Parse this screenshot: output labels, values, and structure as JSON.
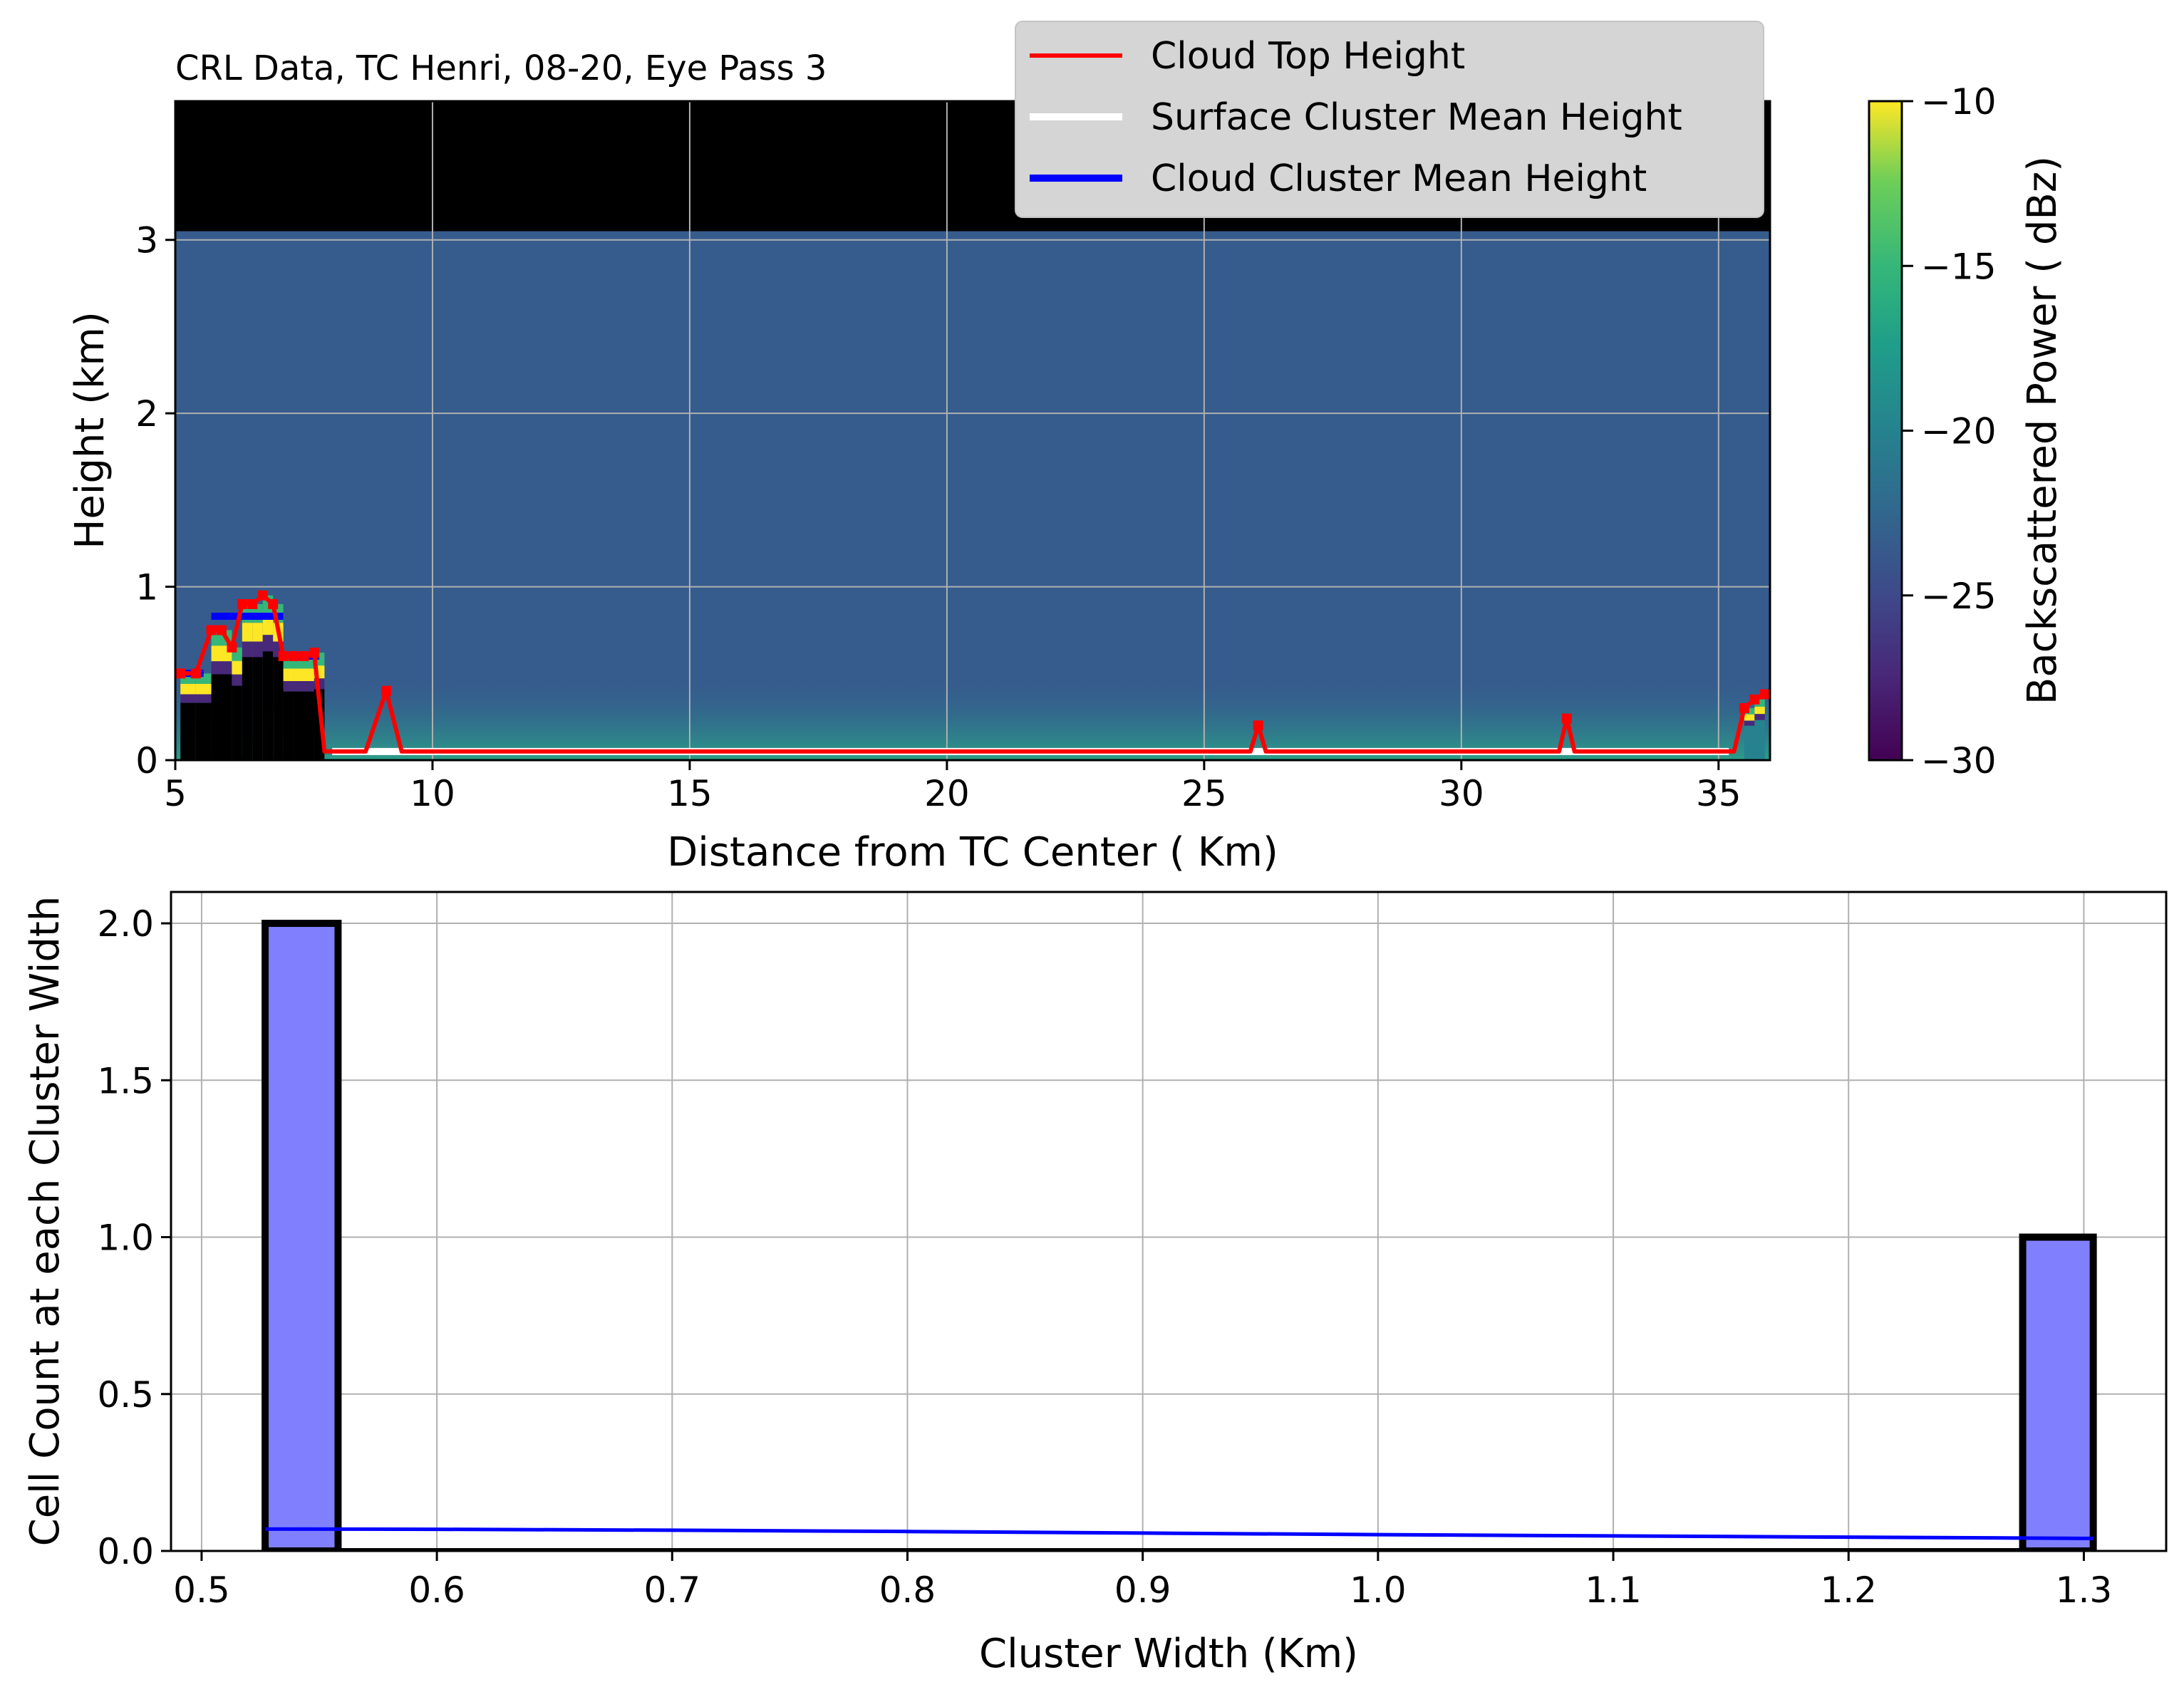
{
  "chart_data": [
    {
      "type": "heatmap",
      "title": "CRL Data, TC Henri, 08-20, Eye Pass 3",
      "xlabel": "Distance from TC Center ( Km)",
      "ylabel": "Height (km)",
      "xlim": [
        5,
        36
      ],
      "ylim": [
        0,
        3.8
      ],
      "xticks": [
        "5",
        "10",
        "15",
        "20",
        "25",
        "30",
        "35"
      ],
      "yticks": [
        "0",
        "1",
        "2",
        "3"
      ],
      "grid": true,
      "legend_position": "top-right",
      "colorbar": {
        "label": "Backscattered Power ( dBz)",
        "range": [
          -30,
          -10
        ],
        "ticks": [
          "−30",
          "−25",
          "−20",
          "−15",
          "−10"
        ],
        "colormap": "viridis"
      },
      "background_power_dbz": -25,
      "data_top_km": 3.05,
      "series": [
        {
          "name": "Cloud Top Height",
          "color": "#ff0000",
          "x": [
            5.1,
            5.4,
            5.7,
            5.9,
            6.1,
            6.3,
            6.5,
            6.7,
            6.9,
            7.1,
            7.3,
            7.5,
            7.7,
            7.9,
            8.1,
            8.7,
            9.1,
            9.4,
            25.9,
            26.05,
            26.2,
            31.9,
            32.05,
            32.2,
            35.3,
            35.5,
            35.7,
            35.9
          ],
          "y": [
            0.5,
            0.5,
            0.75,
            0.75,
            0.65,
            0.9,
            0.9,
            0.95,
            0.9,
            0.6,
            0.6,
            0.6,
            0.62,
            0.05,
            0.05,
            0.05,
            0.4,
            0.05,
            0.05,
            0.2,
            0.05,
            0.05,
            0.24,
            0.05,
            0.05,
            0.3,
            0.35,
            0.38
          ]
        },
        {
          "name": "Surface Cluster Mean Height",
          "color": "#ffffff",
          "segments": [
            {
              "x": [
                8.05,
                35.2
              ],
              "y": [
                0.05,
                0.05
              ]
            }
          ]
        },
        {
          "name": "Cloud Cluster Mean Height",
          "color": "#0000ff",
          "segments": [
            {
              "x": [
                5.1,
                5.55
              ],
              "y": [
                0.5,
                0.5
              ]
            },
            {
              "x": [
                5.7,
                7.1
              ],
              "y": [
                0.83,
                0.83
              ]
            },
            {
              "x": [
                7.2,
                7.8
              ],
              "y": [
                0.6,
                0.6
              ]
            }
          ]
        }
      ]
    },
    {
      "type": "bar",
      "xlabel": "Cluster Width (Km)",
      "ylabel": "Cell Count at each Cluster Width",
      "xlim": [
        0.487,
        1.335
      ],
      "ylim": [
        0,
        2.1
      ],
      "xticks": [
        "0.5",
        "0.6",
        "0.7",
        "0.8",
        "0.9",
        "1.0",
        "1.1",
        "1.2",
        "1.3"
      ],
      "yticks": [
        "0.0",
        "0.5",
        "1.0",
        "1.5",
        "2.0"
      ],
      "grid": true,
      "bars": [
        {
          "x0": 0.527,
          "x1": 0.558,
          "count": 2
        },
        {
          "x0": 1.274,
          "x1": 1.304,
          "count": 1
        }
      ],
      "bar_color": "#8080ff",
      "line": {
        "color": "#0000ff",
        "x": [
          0.527,
          0.6,
          0.7,
          0.8,
          0.9,
          1.0,
          1.1,
          1.2,
          1.304
        ],
        "y": [
          0.07,
          0.069,
          0.066,
          0.062,
          0.057,
          0.052,
          0.048,
          0.044,
          0.04
        ]
      }
    }
  ]
}
